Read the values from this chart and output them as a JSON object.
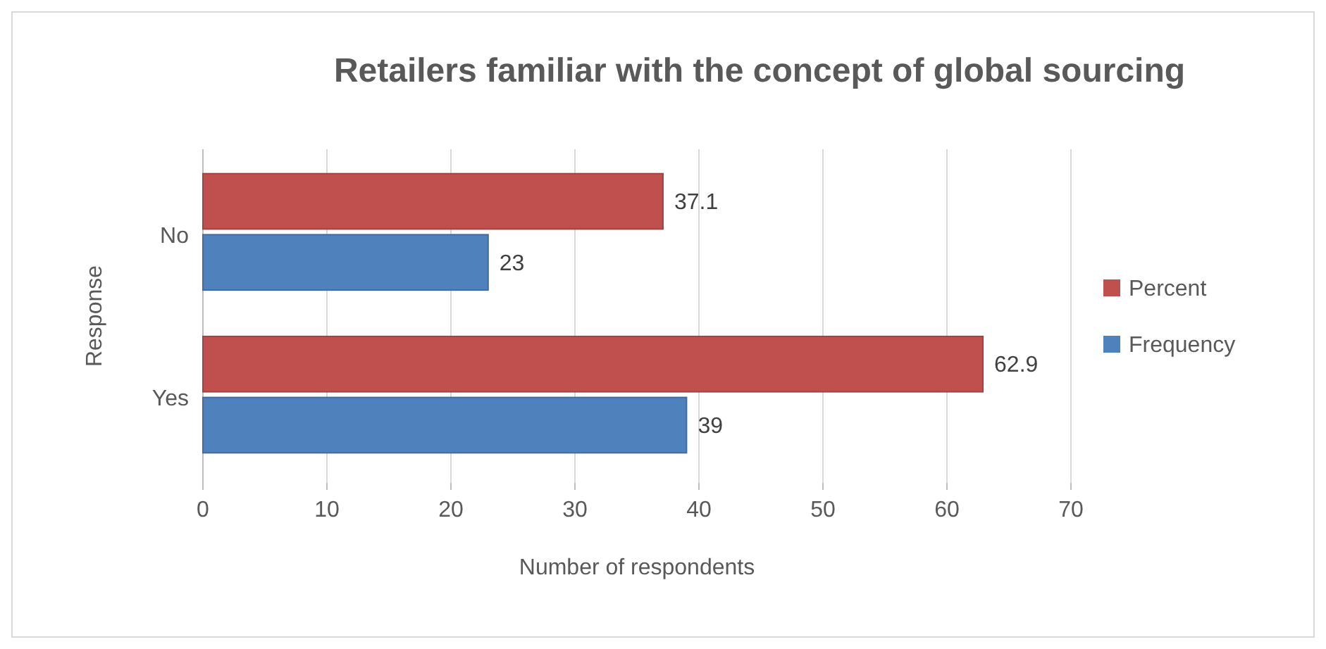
{
  "chart_data": {
    "type": "bar",
    "orientation": "horizontal",
    "title": "Retailers familiar with the concept of global sourcing",
    "xlabel": "Number of respondents",
    "ylabel": "Response",
    "categories": [
      "No",
      "Yes"
    ],
    "series": [
      {
        "name": "Percent",
        "color": "#c0504d",
        "values": [
          37.1,
          62.9
        ]
      },
      {
        "name": "Frequency",
        "color": "#4f81bd",
        "values": [
          23,
          39
        ]
      }
    ],
    "xlim": [
      0,
      70
    ],
    "xticks": [
      0,
      10,
      20,
      30,
      40,
      50,
      60,
      70
    ],
    "grid": "x",
    "legend": "right",
    "data_labels": true
  }
}
